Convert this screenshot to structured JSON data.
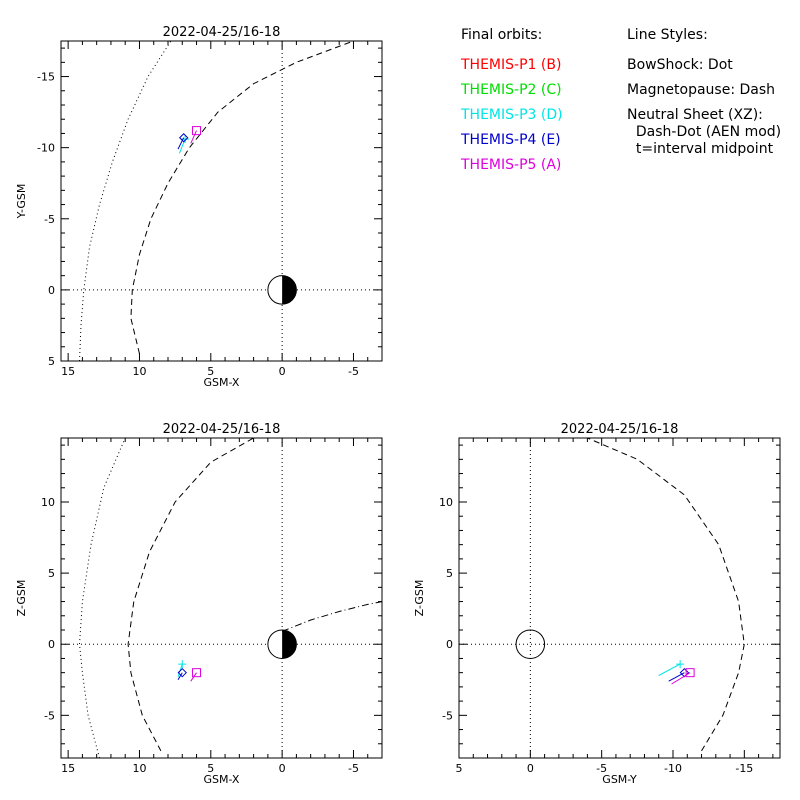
{
  "legend": {
    "orbits_header": "Final orbits:",
    "styles_header": "Line Styles:",
    "probes": [
      {
        "label": "THEMIS-P1 (B)",
        "color": "#ff0000"
      },
      {
        "label": "THEMIS-P2 (C)",
        "color": "#00dd00"
      },
      {
        "label": "THEMIS-P3 (D)",
        "color": "#00e5e5"
      },
      {
        "label": "THEMIS-P4 (E)",
        "color": "#0000cc"
      },
      {
        "label": "THEMIS-P5 (A)",
        "color": "#dd00dd"
      }
    ],
    "styles": [
      "BowShock: Dot",
      "Magnetopause: Dash",
      "Neutral Sheet (XZ):",
      "  Dash-Dot (AEN mod)",
      "  t=interval midpoint"
    ]
  },
  "chart_data": [
    {
      "type": "line",
      "title": "2022-04-25/16-18",
      "xlabel": "GSM-X",
      "ylabel": "Y-GSM",
      "xlim": [
        15.5,
        -7.0
      ],
      "ylim": [
        5.0,
        -17.5
      ],
      "xticks": [
        15,
        10,
        5,
        0,
        -5
      ],
      "yticks": [
        5,
        0,
        -5,
        -10,
        -15
      ],
      "earth": true,
      "series": [
        {
          "style": "dotted",
          "x": [
            14.2,
            14.1,
            13.9,
            13.5,
            12.8,
            11.9,
            10.8,
            9.4,
            7.8
          ],
          "y": [
            5.0,
            2.5,
            0.0,
            -3.0,
            -6.0,
            -9.0,
            -12.0,
            -15.0,
            -17.5
          ]
        },
        {
          "style": "dashed",
          "x": [
            10.0,
            10.6,
            10.5,
            10.0,
            9.2,
            8.0,
            6.5,
            4.5,
            2.0,
            -1.0,
            -5.0
          ],
          "y": [
            4.5,
            2.0,
            0.0,
            -2.5,
            -5.0,
            -7.5,
            -10.0,
            -12.5,
            -14.5,
            -16.0,
            -17.5
          ]
        },
        {
          "style": "solid",
          "color": "#00e5e5",
          "x": [
            7.2,
            6.8
          ],
          "y": [
            -9.6,
            -10.6
          ],
          "end_marker": "plus"
        },
        {
          "style": "solid",
          "color": "#0000cc",
          "x": [
            7.3,
            6.9
          ],
          "y": [
            -9.9,
            -10.7
          ],
          "end_marker": "diamond"
        },
        {
          "style": "solid",
          "color": "#dd00dd",
          "x": [
            6.4,
            6.0
          ],
          "y": [
            -10.3,
            -11.2
          ],
          "end_marker": "square"
        }
      ]
    },
    {
      "type": "line",
      "title": "2022-04-25/16-18",
      "xlabel": "GSM-X",
      "ylabel": "Z-GSM",
      "xlim": [
        15.5,
        -7.0
      ],
      "ylim": [
        -8.0,
        14.5
      ],
      "xticks": [
        15,
        10,
        5,
        0,
        -5
      ],
      "yticks": [
        -5,
        0,
        5,
        10
      ],
      "earth": true,
      "series": [
        {
          "style": "dotted",
          "x": [
            12.8,
            13.6,
            14.0,
            14.2,
            14.0,
            13.4,
            12.5,
            11.0
          ],
          "y": [
            -8.0,
            -5.0,
            -2.0,
            0.0,
            3.0,
            7.0,
            11.0,
            14.5
          ]
        },
        {
          "style": "dashed",
          "x": [
            8.5,
            9.8,
            10.6,
            10.8,
            10.4,
            9.3,
            7.5,
            5.0,
            2.0
          ],
          "y": [
            -7.5,
            -5.0,
            -2.0,
            0.0,
            3.0,
            6.5,
            10.0,
            12.8,
            14.5
          ]
        },
        {
          "style": "dashdot",
          "x": [
            0.0,
            -2.0,
            -4.0,
            -6.0,
            -7.0
          ],
          "y": [
            0.9,
            1.7,
            2.3,
            2.8,
            3.0
          ]
        },
        {
          "style": "solid",
          "color": "#00e5e5",
          "x": [
            7.3,
            7.0
          ],
          "y": [
            -2.3,
            -1.4
          ],
          "end_marker": "plus"
        },
        {
          "style": "solid",
          "color": "#0000cc",
          "x": [
            7.3,
            7.0
          ],
          "y": [
            -2.5,
            -2.0
          ],
          "end_marker": "diamond"
        },
        {
          "style": "solid",
          "color": "#dd00dd",
          "x": [
            6.4,
            6.0
          ],
          "y": [
            -2.6,
            -2.0
          ],
          "end_marker": "square"
        }
      ]
    },
    {
      "type": "line",
      "title": "2022-04-25/16-18",
      "xlabel": "GSM-Y",
      "ylabel": "Z-GSM",
      "xlim": [
        5.0,
        -17.5
      ],
      "ylim": [
        -8.0,
        14.5
      ],
      "xticks": [
        5,
        0,
        -5,
        -10,
        -15
      ],
      "yticks": [
        -5,
        0,
        5,
        10
      ],
      "earth": false,
      "earth_outline": true,
      "series": [
        {
          "style": "dashed",
          "x": [
            -12.0,
            -13.5,
            -14.6,
            -15.0,
            -14.6,
            -13.2,
            -10.8,
            -7.5,
            -4.0
          ],
          "y": [
            -7.5,
            -5.0,
            -2.0,
            0.0,
            3.0,
            7.0,
            10.5,
            13.0,
            14.5
          ]
        },
        {
          "style": "solid",
          "color": "#00e5e5",
          "x": [
            -9.0,
            -10.5
          ],
          "y": [
            -2.2,
            -1.4
          ],
          "end_marker": "plus"
        },
        {
          "style": "solid",
          "color": "#0000cc",
          "x": [
            -9.7,
            -10.8
          ],
          "y": [
            -2.6,
            -2.0
          ],
          "end_marker": "diamond"
        },
        {
          "style": "solid",
          "color": "#dd00dd",
          "x": [
            -9.9,
            -11.2
          ],
          "y": [
            -2.8,
            -2.0
          ],
          "end_marker": "square"
        }
      ]
    }
  ]
}
